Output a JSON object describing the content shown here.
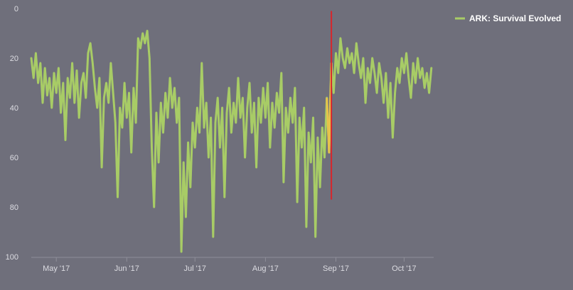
{
  "chart_data": {
    "type": "line",
    "title": "",
    "xlabel": "",
    "ylabel": "",
    "y_reversed": true,
    "ylim": [
      0,
      100
    ],
    "yticks": [
      0,
      20,
      40,
      60,
      80,
      100
    ],
    "y_tick_labels": [
      "0",
      "20",
      "40",
      "60",
      "80",
      "100"
    ],
    "x_range": [
      "2017-04-20",
      "2017-10-14"
    ],
    "x_ticks": [
      "2017-05-01",
      "2017-06-01",
      "2017-07-01",
      "2017-08-01",
      "2017-09-01",
      "2017-10-01"
    ],
    "x_tick_labels": [
      "May '17",
      "Jun '17",
      "Jul '17",
      "Aug '17",
      "Sep '17",
      "Oct '17"
    ],
    "grid": false,
    "legend_position": "top-right",
    "series": [
      {
        "name": "ARK: Survival Evolved",
        "color": "#a8cc66",
        "highlight_color": "#e6c24a",
        "points": [
          [
            "2017-04-20",
            20
          ],
          [
            "2017-04-21",
            28
          ],
          [
            "2017-04-22",
            18
          ],
          [
            "2017-04-23",
            30
          ],
          [
            "2017-04-24",
            22
          ],
          [
            "2017-04-25",
            38
          ],
          [
            "2017-04-26",
            24
          ],
          [
            "2017-04-27",
            35
          ],
          [
            "2017-04-28",
            28
          ],
          [
            "2017-04-29",
            40
          ],
          [
            "2017-04-30",
            26
          ],
          [
            "2017-05-01",
            34
          ],
          [
            "2017-05-02",
            24
          ],
          [
            "2017-05-03",
            42
          ],
          [
            "2017-05-04",
            30
          ],
          [
            "2017-05-05",
            53
          ],
          [
            "2017-05-06",
            28
          ],
          [
            "2017-05-07",
            36
          ],
          [
            "2017-05-08",
            22
          ],
          [
            "2017-05-09",
            38
          ],
          [
            "2017-05-10",
            25
          ],
          [
            "2017-05-11",
            44
          ],
          [
            "2017-05-12",
            30
          ],
          [
            "2017-05-13",
            26
          ],
          [
            "2017-05-14",
            36
          ],
          [
            "2017-05-15",
            18
          ],
          [
            "2017-05-16",
            14
          ],
          [
            "2017-05-17",
            22
          ],
          [
            "2017-05-18",
            32
          ],
          [
            "2017-05-19",
            40
          ],
          [
            "2017-05-20",
            28
          ],
          [
            "2017-05-21",
            64
          ],
          [
            "2017-05-22",
            36
          ],
          [
            "2017-05-23",
            30
          ],
          [
            "2017-05-24",
            38
          ],
          [
            "2017-05-25",
            22
          ],
          [
            "2017-05-26",
            34
          ],
          [
            "2017-05-27",
            46
          ],
          [
            "2017-05-28",
            76
          ],
          [
            "2017-05-29",
            40
          ],
          [
            "2017-05-30",
            48
          ],
          [
            "2017-05-31",
            30
          ],
          [
            "2017-06-01",
            44
          ],
          [
            "2017-06-02",
            34
          ],
          [
            "2017-06-03",
            58
          ],
          [
            "2017-06-04",
            32
          ],
          [
            "2017-06-05",
            46
          ],
          [
            "2017-06-06",
            12
          ],
          [
            "2017-06-07",
            16
          ],
          [
            "2017-06-08",
            10
          ],
          [
            "2017-06-09",
            14
          ],
          [
            "2017-06-10",
            9
          ],
          [
            "2017-06-11",
            20
          ],
          [
            "2017-06-12",
            56
          ],
          [
            "2017-06-13",
            80
          ],
          [
            "2017-06-14",
            42
          ],
          [
            "2017-06-15",
            62
          ],
          [
            "2017-06-16",
            38
          ],
          [
            "2017-06-17",
            50
          ],
          [
            "2017-06-18",
            34
          ],
          [
            "2017-06-19",
            44
          ],
          [
            "2017-06-20",
            28
          ],
          [
            "2017-06-21",
            40
          ],
          [
            "2017-06-22",
            32
          ],
          [
            "2017-06-23",
            46
          ],
          [
            "2017-06-24",
            36
          ],
          [
            "2017-06-25",
            98
          ],
          [
            "2017-06-26",
            62
          ],
          [
            "2017-06-27",
            84
          ],
          [
            "2017-06-28",
            54
          ],
          [
            "2017-06-29",
            72
          ],
          [
            "2017-06-30",
            46
          ],
          [
            "2017-07-01",
            56
          ],
          [
            "2017-07-02",
            40
          ],
          [
            "2017-07-03",
            50
          ],
          [
            "2017-07-04",
            22
          ],
          [
            "2017-07-05",
            48
          ],
          [
            "2017-07-06",
            38
          ],
          [
            "2017-07-07",
            60
          ],
          [
            "2017-07-08",
            44
          ],
          [
            "2017-07-09",
            92
          ],
          [
            "2017-07-10",
            46
          ],
          [
            "2017-07-11",
            36
          ],
          [
            "2017-07-12",
            56
          ],
          [
            "2017-07-13",
            40
          ],
          [
            "2017-07-14",
            76
          ],
          [
            "2017-07-15",
            42
          ],
          [
            "2017-07-16",
            32
          ],
          [
            "2017-07-17",
            50
          ],
          [
            "2017-07-18",
            38
          ],
          [
            "2017-07-19",
            46
          ],
          [
            "2017-07-20",
            28
          ],
          [
            "2017-07-21",
            44
          ],
          [
            "2017-07-22",
            36
          ],
          [
            "2017-07-23",
            60
          ],
          [
            "2017-07-24",
            40
          ],
          [
            "2017-07-25",
            30
          ],
          [
            "2017-07-26",
            50
          ],
          [
            "2017-07-27",
            38
          ],
          [
            "2017-07-28",
            64
          ],
          [
            "2017-07-29",
            36
          ],
          [
            "2017-07-30",
            46
          ],
          [
            "2017-07-31",
            32
          ],
          [
            "2017-08-01",
            44
          ],
          [
            "2017-08-02",
            30
          ],
          [
            "2017-08-03",
            56
          ],
          [
            "2017-08-04",
            38
          ],
          [
            "2017-08-05",
            48
          ],
          [
            "2017-08-06",
            34
          ],
          [
            "2017-08-07",
            42
          ],
          [
            "2017-08-08",
            26
          ],
          [
            "2017-08-09",
            70
          ],
          [
            "2017-08-10",
            40
          ],
          [
            "2017-08-11",
            50
          ],
          [
            "2017-08-12",
            36
          ],
          [
            "2017-08-13",
            46
          ],
          [
            "2017-08-14",
            32
          ],
          [
            "2017-08-15",
            78
          ],
          [
            "2017-08-16",
            44
          ],
          [
            "2017-08-17",
            56
          ],
          [
            "2017-08-18",
            40
          ],
          [
            "2017-08-19",
            88
          ],
          [
            "2017-08-20",
            50
          ],
          [
            "2017-08-21",
            62
          ],
          [
            "2017-08-22",
            44
          ],
          [
            "2017-08-23",
            92
          ],
          [
            "2017-08-24",
            52
          ],
          [
            "2017-08-25",
            72
          ],
          [
            "2017-08-26",
            48
          ],
          [
            "2017-08-27",
            60
          ],
          [
            "2017-08-28",
            36
          ],
          [
            "2017-08-29",
            58
          ],
          [
            "2017-08-30",
            22
          ],
          [
            "2017-08-31",
            34
          ],
          [
            "2017-09-01",
            18
          ],
          [
            "2017-09-02",
            26
          ],
          [
            "2017-09-03",
            12
          ],
          [
            "2017-09-04",
            20
          ],
          [
            "2017-09-05",
            24
          ],
          [
            "2017-09-06",
            16
          ],
          [
            "2017-09-07",
            22
          ],
          [
            "2017-09-08",
            18
          ],
          [
            "2017-09-09",
            26
          ],
          [
            "2017-09-10",
            14
          ],
          [
            "2017-09-11",
            22
          ],
          [
            "2017-09-12",
            28
          ],
          [
            "2017-09-13",
            20
          ],
          [
            "2017-09-14",
            38
          ],
          [
            "2017-09-15",
            24
          ],
          [
            "2017-09-16",
            30
          ],
          [
            "2017-09-17",
            20
          ],
          [
            "2017-09-18",
            26
          ],
          [
            "2017-09-19",
            34
          ],
          [
            "2017-09-20",
            22
          ],
          [
            "2017-09-21",
            28
          ],
          [
            "2017-09-22",
            38
          ],
          [
            "2017-09-23",
            26
          ],
          [
            "2017-09-24",
            44
          ],
          [
            "2017-09-25",
            30
          ],
          [
            "2017-09-26",
            52
          ],
          [
            "2017-09-27",
            34
          ],
          [
            "2017-09-28",
            24
          ],
          [
            "2017-09-29",
            30
          ],
          [
            "2017-09-30",
            20
          ],
          [
            "2017-10-01",
            26
          ],
          [
            "2017-10-02",
            18
          ],
          [
            "2017-10-03",
            28
          ],
          [
            "2017-10-04",
            36
          ],
          [
            "2017-10-05",
            22
          ],
          [
            "2017-10-06",
            30
          ],
          [
            "2017-10-07",
            20
          ],
          [
            "2017-10-08",
            28
          ],
          [
            "2017-10-09",
            24
          ],
          [
            "2017-10-10",
            32
          ],
          [
            "2017-10-11",
            26
          ],
          [
            "2017-10-12",
            34
          ],
          [
            "2017-10-13",
            24
          ]
        ]
      }
    ],
    "highlight_range": [
      "2017-08-28",
      "2017-08-30"
    ],
    "marker": {
      "date": "2017-08-30",
      "from": 1,
      "to": 77,
      "color": "#d8262c"
    }
  }
}
